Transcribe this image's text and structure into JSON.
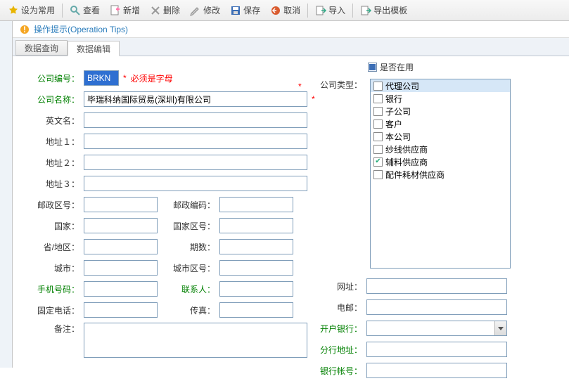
{
  "toolbar": {
    "set_common": "设为常用",
    "view": "查看",
    "add": "新增",
    "delete": "删除",
    "edit": "修改",
    "save": "保存",
    "cancel": "取消",
    "import": "导入",
    "export_tpl": "导出模板"
  },
  "tips": {
    "text": "操作提示(Operation Tips)"
  },
  "tabs": {
    "query": "数据查询",
    "edit": "数据编辑"
  },
  "form": {
    "company_code_lbl": "公司编号：",
    "company_code_val": "BRKN",
    "company_code_hint": "必须是字母",
    "company_name_lbl": "公司名称：",
    "company_name_val": "毕瑞科纳国际贸易(深圳)有限公司",
    "english_name_lbl": "英文名：",
    "addr1_lbl": "地址１：",
    "addr2_lbl": "地址２：",
    "addr3_lbl": "地址３：",
    "postal_area_lbl": "邮政区号：",
    "postal_code_lbl": "邮政编码：",
    "country_lbl": "国家：",
    "country_area_lbl": "国家区号：",
    "province_lbl": "省/地区：",
    "period_lbl": "期数：",
    "city_lbl": "城市：",
    "city_area_lbl": "城市区号：",
    "mobile_lbl": "手机号码：",
    "contact_lbl": "联系人：",
    "phone_lbl": "固定电话：",
    "fax_lbl": "传真：",
    "remark_lbl": "备注："
  },
  "right": {
    "in_use_lbl": "是否在用",
    "type_lbl": "公司类型：",
    "types": [
      {
        "label": "代理公司",
        "checked": false,
        "hl": true
      },
      {
        "label": "银行",
        "checked": false
      },
      {
        "label": "子公司",
        "checked": false
      },
      {
        "label": "客户",
        "checked": false
      },
      {
        "label": "本公司",
        "checked": false
      },
      {
        "label": "纱线供应商",
        "checked": false
      },
      {
        "label": "辅料供应商",
        "checked": true
      },
      {
        "label": "配件耗材供应商",
        "checked": false
      }
    ],
    "url_lbl": "网址：",
    "email_lbl": "电邮：",
    "bank_lbl": "开户银行：",
    "branch_lbl": "分行地址：",
    "account_lbl": "银行帐号："
  }
}
